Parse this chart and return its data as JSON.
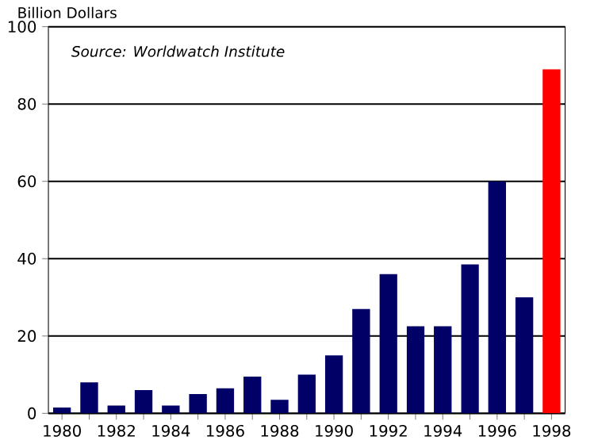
{
  "chart_data": {
    "type": "bar",
    "ylabel": "Billion Dollars",
    "annotations": [
      "Source: Worldwatch Institute"
    ],
    "categories": [
      "1980",
      null,
      "1982",
      null,
      "1984",
      null,
      "1986",
      null,
      "1988",
      null,
      "1990",
      null,
      "1992",
      null,
      "1994",
      null,
      "1996",
      null,
      "1998"
    ],
    "values": [
      1.5,
      8,
      2,
      6,
      2,
      5,
      6.5,
      9.5,
      3.5,
      10,
      15,
      27,
      36,
      22.5,
      22.5,
      38.5,
      60,
      30,
      89
    ],
    "colors": [
      "#000066",
      "#000066",
      "#000066",
      "#000066",
      "#000066",
      "#000066",
      "#000066",
      "#000066",
      "#000066",
      "#000066",
      "#000066",
      "#000066",
      "#000066",
      "#000066",
      "#000066",
      "#000066",
      "#000066",
      "#000066",
      "#ff0000"
    ],
    "ylim": [
      0,
      100
    ],
    "yticks": [
      0,
      20,
      40,
      60,
      80,
      100
    ],
    "grid": "y"
  }
}
